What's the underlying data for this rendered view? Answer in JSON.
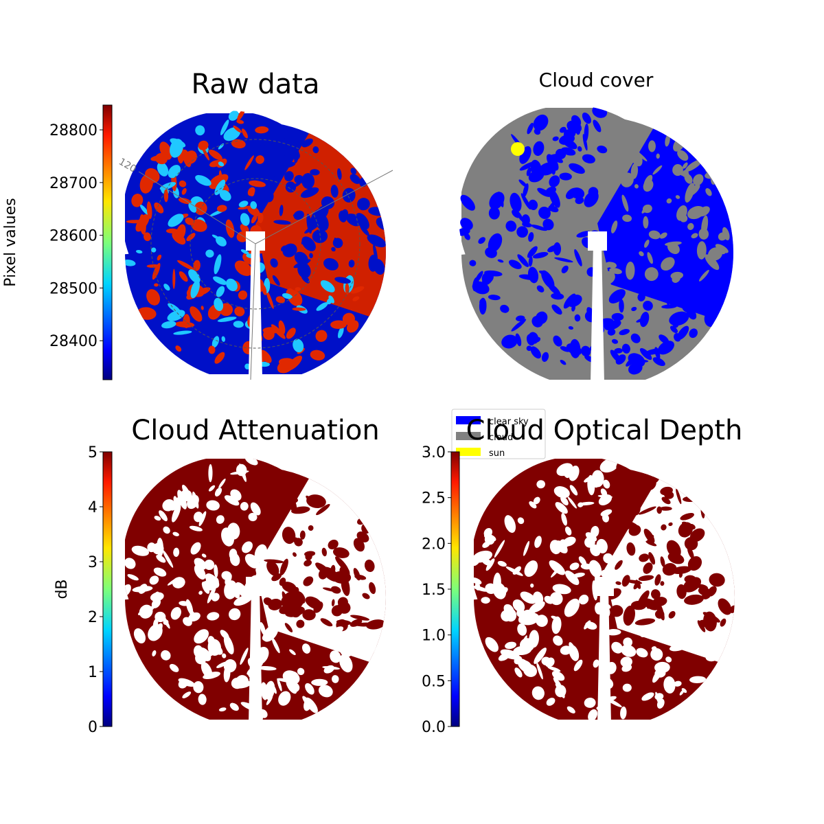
{
  "chart_data": [
    {
      "type": "image",
      "title": "Raw data",
      "colorbar_label": "Pixel values",
      "cmap": "jet",
      "ylim": [
        28326,
        28847
      ],
      "yticks": [
        28400,
        28500,
        28600,
        28700,
        28800
      ],
      "annotations": [
        "120"
      ]
    },
    {
      "type": "classification",
      "title": "Cloud cover",
      "series": [
        {
          "name": "clear sky",
          "color": "#0000ff"
        },
        {
          "name": "cloud",
          "color": "#808080"
        },
        {
          "name": "sun",
          "color": "#ffff00"
        }
      ]
    },
    {
      "type": "image",
      "title": "Cloud Attenuation",
      "colorbar_label": "dB",
      "cmap": "jet",
      "ylim": [
        0,
        5
      ],
      "yticks": [
        0,
        1,
        2,
        3,
        4,
        5
      ]
    },
    {
      "type": "image",
      "title": "Cloud Optical Depth",
      "cmap": "jet",
      "ylim": [
        0,
        3
      ],
      "yticks": [
        {
          "value": 0,
          "label": "0.0"
        },
        {
          "value": 0.5,
          "label": "0.5"
        },
        {
          "value": 1,
          "label": "1.0"
        },
        {
          "value": 1.5,
          "label": "1.5"
        },
        {
          "value": 2,
          "label": "2.0"
        },
        {
          "value": 2.5,
          "label": "2.5"
        },
        {
          "value": 3,
          "label": "3.0"
        }
      ]
    }
  ]
}
